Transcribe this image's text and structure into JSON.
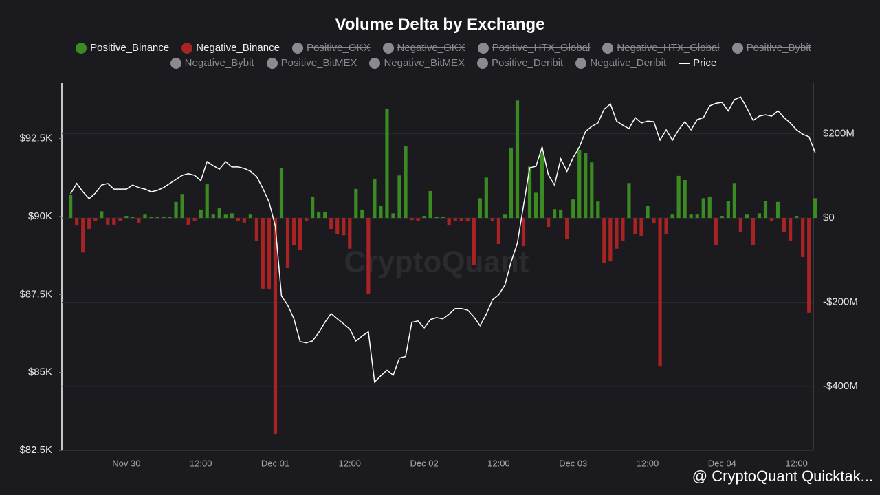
{
  "chart_data": {
    "type": "bar_line",
    "title": "Volume Delta by Exchange",
    "watermark": "CryptoQuant",
    "footer_credit": "@ CryptoQuant Quicktak...",
    "categories": [
      null,
      null,
      null,
      null,
      null,
      null,
      null,
      null,
      null,
      "Nov 30",
      null,
      null,
      null,
      null,
      null,
      null,
      null,
      null,
      null,
      null,
      null,
      "12:00",
      null,
      null,
      null,
      null,
      null,
      null,
      null,
      null,
      null,
      null,
      null,
      "Dec 01",
      null,
      null,
      null,
      null,
      null,
      null,
      null,
      null,
      null,
      null,
      null,
      "12:00",
      null,
      null,
      null,
      null,
      null,
      null,
      null,
      null,
      null,
      null,
      null,
      "Dec 02",
      null,
      null,
      null,
      null,
      null,
      null,
      null,
      null,
      null,
      null,
      null,
      "12:00",
      null,
      null,
      null,
      null,
      null,
      null,
      null,
      null,
      null,
      null,
      null,
      "Dec 03",
      null,
      null,
      null,
      null,
      null,
      null,
      null,
      null,
      null,
      null,
      null,
      "12:00",
      null,
      null,
      null,
      null,
      null,
      null,
      null,
      null,
      null,
      null,
      null,
      "Dec 04",
      null,
      null,
      null,
      null,
      null,
      null,
      null,
      null,
      null,
      null,
      null,
      "12:00",
      null,
      null,
      null
    ],
    "series": [
      {
        "name": "Positive_Binance",
        "color": "#3b8a22",
        "axis": "y2",
        "kind": "bar",
        "values": [
          55000000.0,
          null,
          null,
          null,
          null,
          16000000.0,
          null,
          null,
          null,
          5000000.0,
          2000000.0,
          null,
          8000000.0,
          2000000.0,
          2000000.0,
          2000000.0,
          2000000.0,
          38000000.0,
          57000000.0,
          null,
          null,
          20000000.0,
          80000000.0,
          8000000.0,
          23000000.0,
          8000000.0,
          11000000.0,
          null,
          null,
          8000000.0,
          null,
          null,
          null,
          null,
          118000000.0,
          null,
          null,
          null,
          null,
          51000000.0,
          15000000.0,
          15000000.0,
          null,
          null,
          null,
          null,
          69000000.0,
          20000000.0,
          null,
          93000000.0,
          28000000.0,
          260000000.0,
          11000000.0,
          101000000.0,
          170000000.0,
          null,
          null,
          5000000.0,
          64000000.0,
          3000000.0,
          2000000.0,
          null,
          null,
          null,
          null,
          null,
          47000000.0,
          96000000.0,
          null,
          null,
          8000000.0,
          167000000.0,
          279000000.0,
          null,
          122000000.0,
          60000000.0,
          155000000.0,
          null,
          21000000.0,
          20000000.0,
          null,
          44000000.0,
          162000000.0,
          154000000.0,
          132000000.0,
          39000000.0,
          null,
          null,
          null,
          null,
          83000000.0,
          null,
          null,
          28000000.0,
          null,
          null,
          null,
          8000000.0,
          100000000.0,
          90000000.0,
          8000000.0,
          8000000.0,
          47000000.0,
          51000000.0,
          null,
          5000000.0,
          41000000.0,
          83000000.0,
          null,
          8000000.0,
          null,
          11000000.0,
          41000000.0,
          null,
          38000000.0,
          null,
          null,
          5000000.0,
          null,
          null,
          47000000.0
        ]
      },
      {
        "name": "Negative_Binance",
        "color": "#a82323",
        "axis": "y2",
        "kind": "bar",
        "values": [
          null,
          -18000000.0,
          -82000000.0,
          -26000000.0,
          -8000000.0,
          null,
          -16000000.0,
          -16000000.0,
          -8000000.0,
          null,
          null,
          -11000000.0,
          null,
          null,
          null,
          null,
          null,
          null,
          null,
          -16000000.0,
          -8000000.0,
          null,
          null,
          null,
          null,
          null,
          null,
          -8000000.0,
          -11000000.0,
          null,
          -54000000.0,
          -168000000.0,
          -168000000.0,
          -514000000.0,
          null,
          -119000000.0,
          -65000000.0,
          -75000000.0,
          -8000000.0,
          null,
          null,
          null,
          -26000000.0,
          -38000000.0,
          -41000000.0,
          -73000000.0,
          null,
          null,
          -181000000.0,
          null,
          null,
          null,
          null,
          null,
          null,
          -5000000.0,
          -8000000.0,
          null,
          null,
          null,
          null,
          -18000000.0,
          -8000000.0,
          -8000000.0,
          -8000000.0,
          -111000000.0,
          null,
          null,
          -8000000.0,
          -62000000.0,
          null,
          null,
          null,
          -67000000.0,
          null,
          null,
          null,
          -21000000.0,
          null,
          null,
          -49000000.0,
          null,
          null,
          null,
          null,
          null,
          -106000000.0,
          -103000000.0,
          -73000000.0,
          -54000000.0,
          null,
          -38000000.0,
          -43000000.0,
          null,
          -13000000.0,
          -353000000.0,
          -38000000.0,
          null,
          null,
          null,
          null,
          null,
          null,
          null,
          -65000000.0,
          null,
          null,
          null,
          -33000000.0,
          null,
          -65000000.0,
          null,
          null,
          -8000000.0,
          null,
          -34000000.0,
          -55000000.0,
          null,
          -93000000.0,
          -225000000.0,
          null
        ]
      },
      {
        "name": "Price",
        "color": "#ffffff",
        "axis": "y",
        "kind": "line",
        "values": [
          90730,
          91060,
          90790,
          90570,
          90750,
          91010,
          91060,
          90880,
          90880,
          90880,
          91010,
          90930,
          90880,
          90790,
          90840,
          90930,
          91060,
          91190,
          91320,
          91370,
          91320,
          91150,
          91760,
          91630,
          91520,
          91760,
          91590,
          91590,
          91540,
          91450,
          91280,
          90900,
          90460,
          89690,
          87450,
          87160,
          86720,
          85990,
          85950,
          86010,
          86280,
          86610,
          86890,
          86720,
          86560,
          86390,
          86010,
          86170,
          86300,
          84690,
          84890,
          85070,
          84910,
          85460,
          85510,
          86610,
          86650,
          86430,
          86700,
          86760,
          86720,
          86870,
          87050,
          87050,
          87000,
          86780,
          86500,
          86870,
          87330,
          87490,
          87800,
          88550,
          89140,
          90350,
          91560,
          91610,
          92230,
          91340,
          91010,
          91850,
          91450,
          91890,
          92230,
          92730,
          92890,
          93000,
          93440,
          93610,
          93060,
          92930,
          92820,
          93170,
          93000,
          93060,
          93040,
          92450,
          92780,
          92450,
          92780,
          93040,
          92780,
          93110,
          93170,
          93550,
          93630,
          93660,
          93390,
          93750,
          93830,
          93480,
          93080,
          93220,
          93260,
          93220,
          93390,
          93170,
          93000,
          92780,
          92640,
          92560,
          92050
        ]
      }
    ],
    "hidden_series": [
      "Positive_OKX",
      "Negative_OKX",
      "Positive_HTX_Global",
      "Negative_HTX_Global",
      "Positive_Bybit",
      "Negative_Bybit",
      "Positive_BitMEX",
      "Negative_BitMEX",
      "Positive_Deribit",
      "Negative_Deribit"
    ],
    "hidden_color": "#8a8a90",
    "ylim": [
      82500,
      94300
    ],
    "yticks": [
      {
        "value": 82500,
        "label": "$82.5K"
      },
      {
        "value": 85000,
        "label": "$85K"
      },
      {
        "value": 87500,
        "label": "$87.5K"
      },
      {
        "value": 90000,
        "label": "$90K"
      },
      {
        "value": 92500,
        "label": "$92.5K"
      }
    ],
    "y2lim": [
      -552000000.0,
      322000000.0
    ],
    "y2ticks": [
      {
        "value": -400000000.0,
        "label": "-$400M"
      },
      {
        "value": -200000000.0,
        "label": "-$200M"
      },
      {
        "value": 0,
        "label": "$0"
      },
      {
        "value": 200000000.0,
        "label": "$200M"
      }
    ],
    "grid": true
  }
}
